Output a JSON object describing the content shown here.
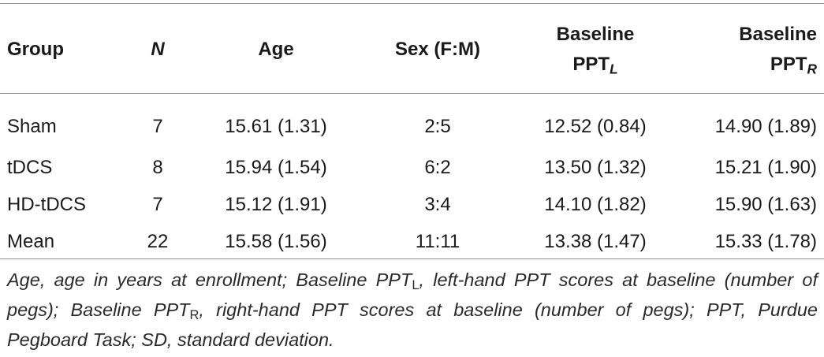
{
  "table": {
    "headers": {
      "group": "Group",
      "n": "N",
      "age": "Age",
      "sex": "Sex (F:M)",
      "baseline_left_prefix": "Baseline",
      "baseline_left_main": "PPT",
      "baseline_left_sub": "L",
      "baseline_right_prefix": "Baseline",
      "baseline_right_main": "PPT",
      "baseline_right_sub": "R"
    },
    "rows": [
      {
        "group": "Sham",
        "n": "7",
        "age": "15.61 (1.31)",
        "sex": "2:5",
        "baseline_left": "12.52 (0.84)",
        "baseline_right": "14.90 (1.89)"
      },
      {
        "group": "tDCS",
        "n": "8",
        "age": "15.94 (1.54)",
        "sex": "6:2",
        "baseline_left": "13.50 (1.32)",
        "baseline_right": "15.21 (1.90)"
      },
      {
        "group": "HD-tDCS",
        "n": "7",
        "age": "15.12 (1.91)",
        "sex": "3:4",
        "baseline_left": "14.10 (1.82)",
        "baseline_right": "15.90 (1.63)"
      },
      {
        "group": "Mean",
        "n": "22",
        "age": "15.58 (1.56)",
        "sex": "11:11",
        "baseline_left": "13.38 (1.47)",
        "baseline_right": "15.33 (1.78)"
      }
    ]
  },
  "footnote": {
    "part1": "Age, age in years at enrollment; Baseline PPT",
    "sub1": "L",
    "part2": ", left-hand PPT scores at baseline (number of pegs); Baseline PPT",
    "sub2": "R",
    "part3": ", right-hand PPT scores at baseline (number of pegs); PPT, Purdue Pegboard Task; SD, standard deviation."
  }
}
